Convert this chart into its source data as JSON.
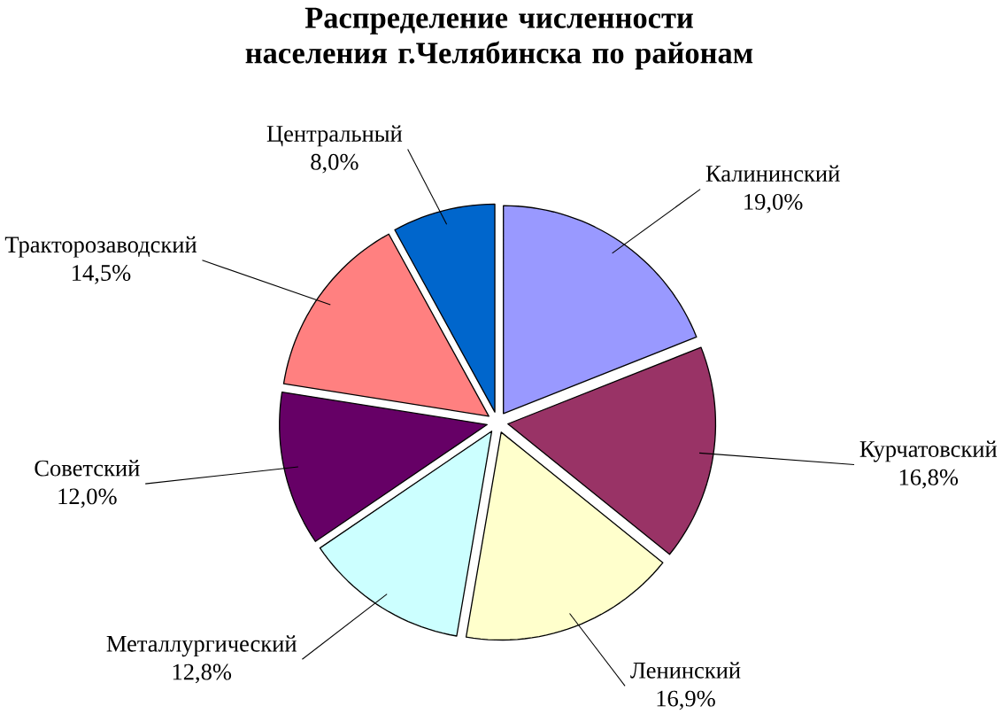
{
  "chart_data": {
    "type": "pie",
    "title": "Распределение численности населения г.Челябинска по районам",
    "categories": [
      "Калининский",
      "Курчатовский",
      "Ленинский",
      "Металлургический",
      "Советский",
      "Тракторозаводский",
      "Центральный"
    ],
    "values": [
      19.0,
      16.8,
      16.9,
      12.8,
      12.0,
      14.5,
      8.0
    ],
    "value_labels": [
      "19,0%",
      "16,8%",
      "16,9%",
      "12,8%",
      "12,0%",
      "14,5%",
      "8,0%"
    ],
    "colors": [
      "#9999ff",
      "#993366",
      "#ffffcc",
      "#ccffff",
      "#660066",
      "#ff8080",
      "#0066cc"
    ]
  }
}
